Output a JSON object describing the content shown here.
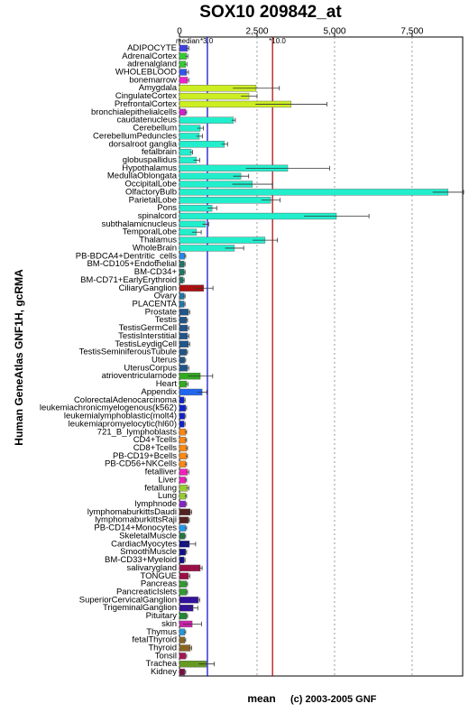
{
  "chart_data": {
    "type": "bar",
    "orientation": "horizontal",
    "title": "SOX10 209842_at",
    "y_label": "Human GeneAtlas GNF1H, gcRMA",
    "x_label": "mean",
    "credit": "(c) 2003-2005 GNF",
    "median_label": "median",
    "categories": [
      "ADIPOCYTE",
      "AdrenalCortex",
      "adrenalgland",
      "WHOLEBLOOD",
      "bonemarrow",
      "Amygdala",
      "CingulateCortex",
      "PrefrontalCortex",
      "bronchialepithelialcells",
      "caudatenucleus",
      "Cerebellum",
      "CerebellumPeduncles",
      "dorsalroot ganglia",
      "fetalbrain",
      "globuspallidus",
      "Hypothalamus",
      "MedullaOblongata",
      "OccipitalLobe",
      "OlfactoryBulb",
      "ParietalLobe",
      "Pons",
      "spinalcord",
      "subthalamicnucleus",
      "TemporalLobe",
      "Thalamus",
      "WholeBrain",
      "PB-BDCA4+Dentritic_cells",
      "BM-CD105+Endothelial",
      "BM-CD34+",
      "BM-CD71+EarlyErythroid",
      "CiliaryGanglion",
      "Ovary",
      "PLACENTA",
      "Prostate",
      "Testis",
      "TestisGermCell",
      "TestisInterstitial",
      "TestisLeydigCell",
      "TestisSeminiferousTubule",
      "Uterus",
      "UterusCorpus",
      "atrioventricularnode",
      "Heart",
      "Appendix",
      "ColorectalAdenocarcinoma",
      "leukemiachronicmyelogenous(k562)",
      "leukemialymphoblastic(molt4)",
      "leukemiapromyelocytic(hl60)",
      "721_B_lymphoblasts",
      "CD4+Tcells",
      "CD8+Tcells",
      "PB-CD19+Bcells",
      "PB-CD56+NKCells",
      "fetalliver",
      "Liver",
      "fetallung",
      "Lung",
      "lymphnode",
      "lymphomaburkittsDaudi",
      "lymphomaburkittsRaji",
      "PB-CD14+Monocytes",
      "SkeletalMuscle",
      "CardiacMyocytes",
      "SmoothMuscle",
      "BM-CD33+Myeloid",
      "salivarygland",
      "TONGUE",
      "Pancreas",
      "PancreaticIslets",
      "SuperiorCervicalGanglion",
      "TrigeminalGanglion",
      "Pituitary",
      "skin",
      "Thymus",
      "fetalThyroid",
      "Thyroid",
      "Tonsil",
      "Trachea",
      "Kidney"
    ],
    "values": [
      260,
      230,
      200,
      230,
      260,
      2470,
      2240,
      3600,
      200,
      1740,
      670,
      640,
      1450,
      380,
      550,
      3490,
      1980,
      2350,
      8660,
      2940,
      1050,
      5060,
      840,
      550,
      2760,
      1770,
      170,
      150,
      150,
      120,
      780,
      150,
      150,
      290,
      230,
      260,
      260,
      290,
      230,
      170,
      260,
      670,
      230,
      730,
      150,
      200,
      170,
      150,
      200,
      200,
      230,
      230,
      200,
      260,
      200,
      260,
      200,
      200,
      350,
      290,
      200,
      170,
      320,
      200,
      150,
      670,
      290,
      230,
      230,
      610,
      440,
      230,
      410,
      170,
      170,
      350,
      200,
      870,
      170
    ],
    "errors": [
      40,
      40,
      40,
      60,
      40,
      750,
      260,
      1150,
      30,
      60,
      100,
      100,
      100,
      40,
      100,
      1350,
      250,
      650,
      500,
      300,
      150,
      1050,
      100,
      150,
      400,
      300,
      30,
      30,
      30,
      30,
      300,
      30,
      30,
      40,
      30,
      40,
      40,
      40,
      30,
      30,
      40,
      400,
      40,
      150,
      30,
      30,
      30,
      30,
      30,
      30,
      30,
      30,
      30,
      40,
      30,
      40,
      30,
      30,
      40,
      30,
      30,
      30,
      200,
      30,
      30,
      60,
      40,
      30,
      30,
      40,
      150,
      30,
      300,
      30,
      30,
      40,
      30,
      250,
      30
    ],
    "colors": [
      "#4040e0",
      "#33cc33",
      "#33cc33",
      "#3355ee",
      "#ee22cc",
      "#ccee22",
      "#ccee22",
      "#ccee22",
      "#cc22cc",
      "#22eecc",
      "#22eecc",
      "#22eecc",
      "#22eecc",
      "#22eecc",
      "#22eecc",
      "#22eecc",
      "#22eecc",
      "#22eecc",
      "#22eecc",
      "#22eecc",
      "#22eecc",
      "#22eecc",
      "#22eecc",
      "#22eecc",
      "#22eecc",
      "#22eecc",
      "#2288ee",
      "#227766",
      "#227766",
      "#227766",
      "#aa1111",
      "#2277aa",
      "#2277aa",
      "#225588",
      "#225588",
      "#225588",
      "#225588",
      "#225588",
      "#225588",
      "#225588",
      "#225588",
      "#33aa22",
      "#33aa22",
      "#2266ee",
      "#1122cc",
      "#1122cc",
      "#1122cc",
      "#1122cc",
      "#ff8811",
      "#ff8811",
      "#ff8811",
      "#ff8811",
      "#ff8811",
      "#ee22bb",
      "#ee22bb",
      "#99cc33",
      "#99cc33",
      "#8822cc",
      "#552222",
      "#552222",
      "#2299ee",
      "#227744",
      "#111188",
      "#111188",
      "#111188",
      "#991144",
      "#991144",
      "#339933",
      "#339933",
      "#331199",
      "#331199",
      "#228833",
      "#cc22aa",
      "#2299dd",
      "#886622",
      "#886622",
      "#aa1155",
      "#669922",
      "#771144"
    ],
    "xlim": [
      0,
      9130
    ],
    "xticks": [
      0,
      {
        "value": 2500,
        "label": "2,500"
      },
      {
        "value": 5000,
        "label": "5,000"
      },
      {
        "value": 7500,
        "label": "7,500"
      }
    ],
    "reference_lines": [
      {
        "value": 900,
        "label": "*3.0",
        "color": "#0000cc"
      },
      {
        "value": 3000,
        "label": "*10.0",
        "color": "#aa0000"
      }
    ],
    "grid": true
  }
}
